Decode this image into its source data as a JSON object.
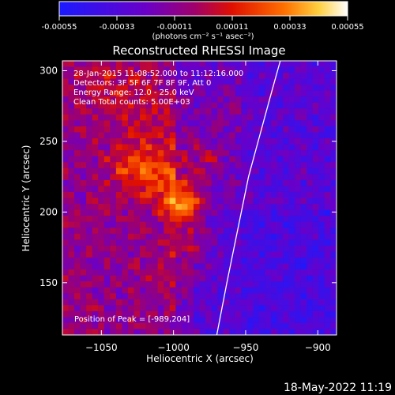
{
  "colorbar": {
    "ticks": [
      "-0.00055",
      "-0.00033",
      "-0.00011",
      "0.00011",
      "0.00033",
      "0.00055"
    ],
    "unit_label": "(photons cm⁻² s⁻¹ asec⁻²)",
    "colors": [
      "#1a1aff",
      "#6a00c8",
      "#a0006a",
      "#e01000",
      "#ff7000",
      "#ffd040",
      "#ffffff"
    ]
  },
  "chart_data": {
    "type": "heatmap",
    "title": "Reconstructed RHESSI Image",
    "xlabel": "Heliocentric X (arcsec)",
    "ylabel": "Heliocentric Y (arcsec)",
    "xlim": [
      -1077,
      -887
    ],
    "ylim": [
      113,
      307
    ],
    "xticks": [
      -1050,
      -1000,
      -950,
      -900
    ],
    "xtick_labels": [
      "−1050",
      "−1000",
      "−950",
      "−900"
    ],
    "yticks": [
      150,
      200,
      250,
      300
    ],
    "ytick_labels": [
      "150",
      "200",
      "250",
      "300"
    ],
    "peak": [
      -989,
      204
    ],
    "limb_curve_x": [
      -970,
      -963,
      -955,
      -948,
      -940,
      -932,
      -926
    ],
    "limb_curve_y": [
      113,
      150,
      190,
      225,
      255,
      285,
      307
    ],
    "annotations": [
      "28-Jan-2015 11:08:52.000 to 11:12:16.000",
      "Detectors: 3F 5F 6F 7F 8F 9F, Att 0",
      "Energy Range: 12.0 - 25.0 keV",
      "Clean     Total counts: 5.00E+03"
    ],
    "peak_label": "Position of Peak = [-989,204]"
  },
  "footer": {
    "timestamp": "18-May-2022 11:19"
  }
}
